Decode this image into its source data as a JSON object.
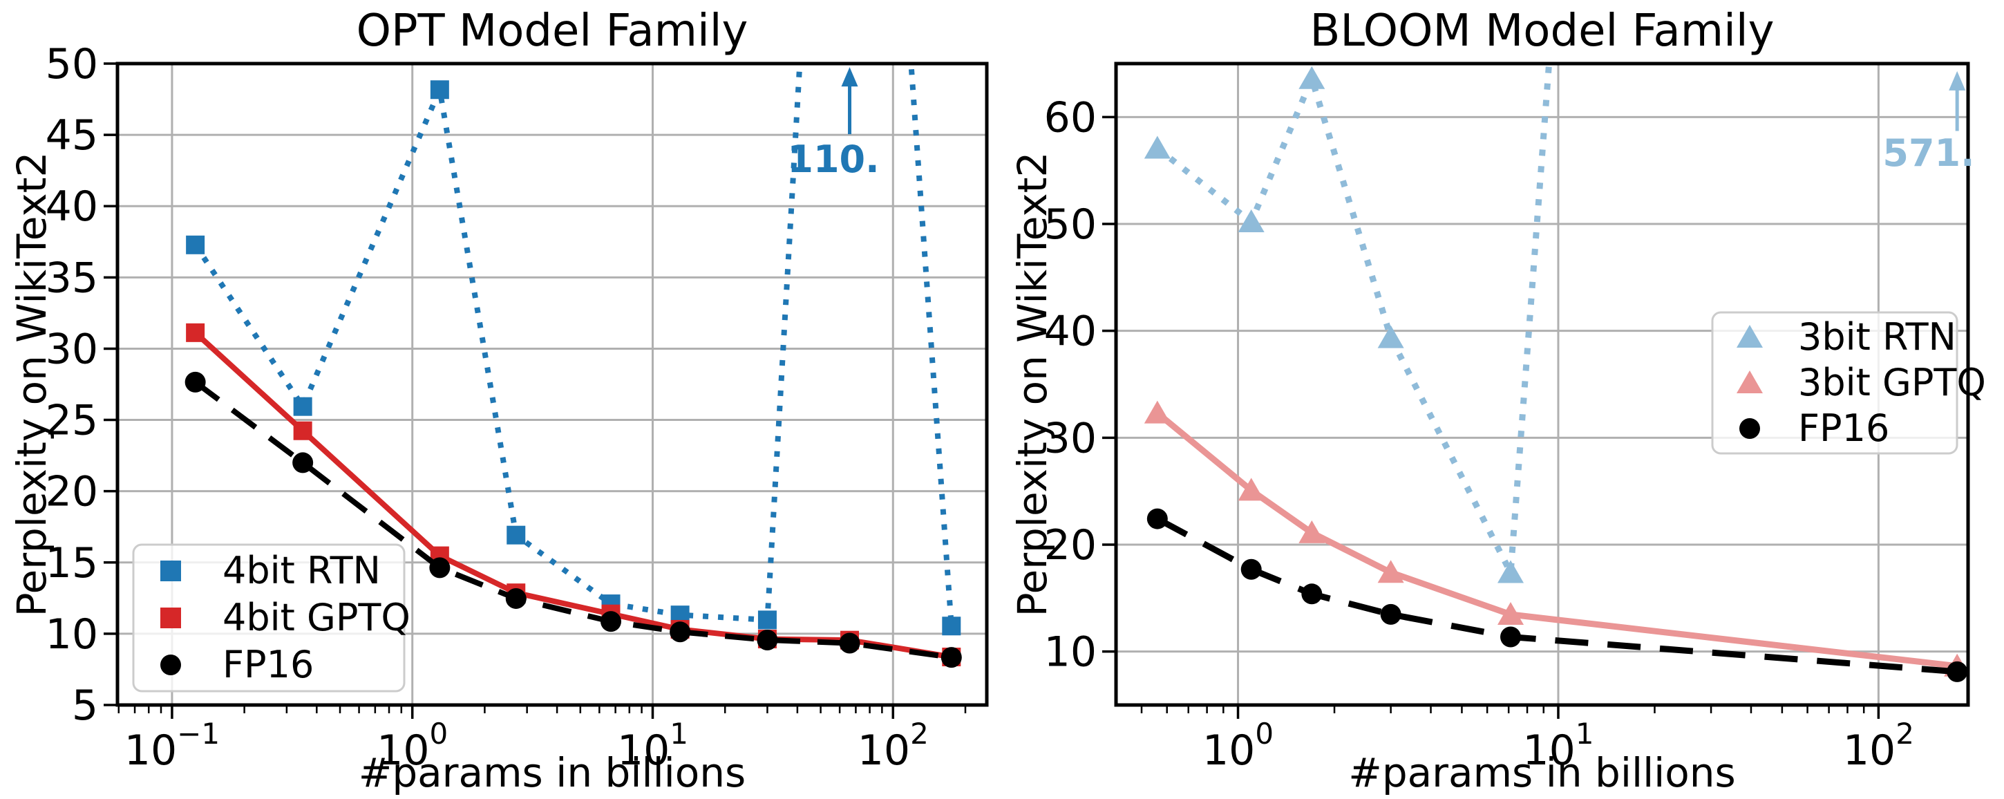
{
  "figure_background": "#ffffff",
  "chart_data": [
    {
      "type": "line",
      "title": "OPT Model Family",
      "xlabel": "#params in billions",
      "ylabel": "Perplexity on WikiText2",
      "xscale": "log",
      "xlim": [
        0.0593,
        245.6
      ],
      "ylim": [
        5,
        50
      ],
      "yticks": [
        5,
        10,
        15,
        20,
        25,
        30,
        35,
        40,
        45,
        50
      ],
      "xtick_exponents": [
        -1,
        0,
        1,
        2
      ],
      "grid": true,
      "legend_position": "lower-left",
      "x": [
        0.125,
        0.35,
        1.3,
        2.7,
        6.7,
        13,
        30,
        66,
        175
      ],
      "series": [
        {
          "name": "4bit RTN",
          "color": "#1f77b4",
          "linestyle": "dotted",
          "marker": "square",
          "values": [
            37.28,
            25.94,
            48.17,
            16.92,
            12.1,
            11.32,
            10.97,
            110.0,
            10.54
          ]
        },
        {
          "name": "4bit GPTQ",
          "color": "#d62728",
          "linestyle": "solid",
          "marker": "square",
          "values": [
            31.12,
            24.24,
            15.47,
            12.87,
            11.39,
            10.31,
            9.63,
            9.55,
            8.37
          ]
        },
        {
          "name": "FP16",
          "color": "#000000",
          "linestyle": "dashed",
          "marker": "circle",
          "values": [
            27.65,
            22.0,
            14.63,
            12.47,
            10.86,
            10.13,
            9.56,
            9.34,
            8.34
          ]
        }
      ],
      "annotation": {
        "text": "110.",
        "x": 66,
        "arrow_from_y": 45.05,
        "arrow_to_y": 49.75,
        "color": "#1f77b4"
      }
    },
    {
      "type": "line",
      "title": "BLOOM Model Family",
      "xlabel": "#params in billions",
      "ylabel": "Perplexity on WikiText2",
      "xscale": "log",
      "xlim": [
        0.416,
        190.4
      ],
      "ylim": [
        5,
        65
      ],
      "yticks": [
        10,
        20,
        30,
        40,
        50,
        60
      ],
      "xtick_exponents": [
        0,
        1,
        2
      ],
      "grid": true,
      "legend_position": "center-right",
      "x": [
        0.56,
        1.1,
        1.7,
        3,
        7.1,
        176
      ],
      "series": [
        {
          "name": "3bit RTN",
          "color": "#8fbbd9",
          "linestyle": "dotted",
          "marker": "triangle-up",
          "values": [
            57.08,
            50.19,
            63.59,
            39.36,
            17.38,
            571.0
          ]
        },
        {
          "name": "3bit GPTQ",
          "color": "#ea9595",
          "linestyle": "solid",
          "marker": "triangle-up",
          "values": [
            32.31,
            25.08,
            21.11,
            17.4,
            13.47,
            8.64
          ]
        },
        {
          "name": "FP16",
          "color": "#000000",
          "linestyle": "dashed",
          "marker": "circle",
          "values": [
            22.42,
            17.69,
            15.39,
            13.48,
            11.37,
            8.11
          ]
        }
      ],
      "annotation": {
        "text": "571.",
        "x": 176,
        "arrow_from_y": 58.7,
        "arrow_to_y": 64.3,
        "color": "#8fbbd9"
      }
    }
  ],
  "style": {
    "grid_color": "#b0b0b0",
    "spine_color": "#000000",
    "legend_border_color": "#cccccc"
  }
}
